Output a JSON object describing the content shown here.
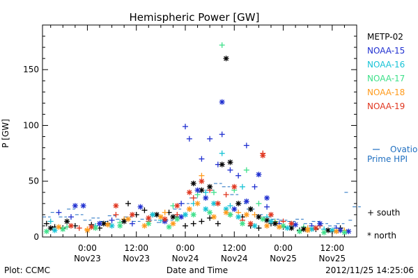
{
  "chart_data": {
    "type": "scatter",
    "title": "Hemispheric Power [GW]",
    "ylabel": "P [GW]",
    "xlabel": "Date and Time",
    "ylim": [
      0,
      190
    ],
    "xlim_hours": [
      -11,
      66
    ],
    "y_ticks": [
      0,
      50,
      100,
      150
    ],
    "x_ticks": [
      {
        "hour": 0,
        "time": "0:00",
        "date": "Nov23"
      },
      {
        "hour": 12,
        "time": "12:00",
        "date": "Nov23"
      },
      {
        "hour": 24,
        "time": "0:00",
        "date": "Nov24"
      },
      {
        "hour": 36,
        "time": "12:00",
        "date": "Nov24"
      },
      {
        "hour": 48,
        "time": "0:00",
        "date": "Nov25"
      },
      {
        "hour": 60,
        "time": "12:00",
        "date": "Nov25"
      }
    ],
    "series": [
      {
        "name": "METP-02",
        "color": "#000000"
      },
      {
        "name": "NOAA-15",
        "color": "#1f2fd0"
      },
      {
        "name": "NOAA-16",
        "color": "#17c3d6"
      },
      {
        "name": "NOAA-17",
        "color": "#3ee08a"
      },
      {
        "name": "NOAA-18",
        "color": "#ff9a1a"
      },
      {
        "name": "NOAA-19",
        "color": "#e0351e"
      }
    ],
    "model_line": {
      "label_line1": "Ovation",
      "label_line2": "Prime HPI",
      "color": "#1f6fc0",
      "points": [
        [
          -11,
          18
        ],
        [
          -9,
          22
        ],
        [
          -7,
          18
        ],
        [
          -5,
          25
        ],
        [
          -3,
          20
        ],
        [
          -1,
          15
        ],
        [
          1,
          17
        ],
        [
          3,
          14
        ],
        [
          5,
          19
        ],
        [
          7,
          16
        ],
        [
          9,
          18
        ],
        [
          11,
          14
        ],
        [
          13,
          16
        ],
        [
          15,
          15
        ],
        [
          17,
          13
        ],
        [
          19,
          15
        ],
        [
          21,
          25
        ],
        [
          23,
          30
        ],
        [
          25,
          35
        ],
        [
          27,
          40
        ],
        [
          29,
          42
        ],
        [
          31,
          48
        ],
        [
          33,
          45
        ],
        [
          35,
          38
        ],
        [
          37,
          30
        ],
        [
          39,
          25
        ],
        [
          41,
          20
        ],
        [
          43,
          18
        ],
        [
          45,
          16
        ],
        [
          47,
          15
        ],
        [
          49,
          14
        ],
        [
          51,
          16
        ],
        [
          53,
          12
        ],
        [
          55,
          14
        ],
        [
          57,
          12
        ],
        [
          59,
          10
        ],
        [
          61,
          12
        ],
        [
          63,
          40
        ],
        [
          64,
          15
        ],
        [
          65,
          27
        ]
      ]
    },
    "south_points": {
      "marker_label": "+ south",
      "points": [
        [
          -10,
          12,
          0
        ],
        [
          -8,
          9,
          0
        ],
        [
          -6,
          8,
          0
        ],
        [
          -3,
          10,
          0
        ],
        [
          1,
          11,
          0
        ],
        [
          3,
          8,
          0
        ],
        [
          5,
          12,
          0
        ],
        [
          10,
          30,
          0
        ],
        [
          12,
          20,
          0
        ],
        [
          14,
          24,
          0
        ],
        [
          16,
          20,
          0
        ],
        [
          20,
          22,
          0
        ],
        [
          22,
          18,
          0
        ],
        [
          24,
          10,
          0
        ],
        [
          26,
          12,
          0
        ],
        [
          28,
          14,
          0
        ],
        [
          30,
          17,
          0
        ],
        [
          32,
          12,
          0
        ],
        [
          35,
          20,
          0
        ],
        [
          38,
          18,
          0
        ],
        [
          40,
          10,
          0
        ],
        [
          42,
          8,
          0
        ],
        [
          45,
          12,
          0
        ],
        [
          48,
          9,
          0
        ],
        [
          52,
          6,
          0
        ],
        [
          56,
          7,
          0
        ],
        [
          60,
          5,
          0
        ],
        [
          62,
          8,
          0
        ],
        [
          -7,
          22,
          1
        ],
        [
          -4,
          18,
          1
        ],
        [
          6,
          15,
          1
        ],
        [
          11,
          12,
          1
        ],
        [
          23,
          30,
          1
        ],
        [
          24,
          99,
          1
        ],
        [
          25,
          88,
          1
        ],
        [
          28,
          70,
          1
        ],
        [
          30,
          88,
          1
        ],
        [
          32,
          65,
          1
        ],
        [
          33,
          92,
          1
        ],
        [
          35,
          60,
          1
        ],
        [
          37,
          55,
          1
        ],
        [
          39,
          82,
          1
        ],
        [
          41,
          45,
          1
        ],
        [
          44,
          27,
          1
        ],
        [
          47,
          12,
          1
        ],
        [
          55,
          10,
          1
        ],
        [
          61,
          8,
          1
        ],
        [
          -9,
          14,
          2
        ],
        [
          2,
          10,
          2
        ],
        [
          18,
          15,
          2
        ],
        [
          26,
          30,
          2
        ],
        [
          29,
          40,
          2
        ],
        [
          33,
          75,
          2
        ],
        [
          35,
          28,
          2
        ],
        [
          38,
          45,
          2
        ],
        [
          40,
          25,
          2
        ],
        [
          44,
          18,
          2
        ],
        [
          50,
          10,
          2
        ],
        [
          58,
          7,
          2
        ],
        [
          -5,
          9,
          3
        ],
        [
          8,
          13,
          3
        ],
        [
          21,
          28,
          3
        ],
        [
          27,
          38,
          3
        ],
        [
          31,
          40,
          3
        ],
        [
          33,
          172,
          3
        ],
        [
          36,
          42,
          3
        ],
        [
          39,
          60,
          3
        ],
        [
          42,
          30,
          3
        ],
        [
          46,
          14,
          3
        ],
        [
          53,
          9,
          3
        ],
        [
          0,
          7,
          4
        ],
        [
          9,
          16,
          4
        ],
        [
          19,
          22,
          4
        ],
        [
          25,
          25,
          4
        ],
        [
          28,
          55,
          4
        ],
        [
          32,
          30,
          4
        ],
        [
          37,
          22,
          4
        ],
        [
          41,
          20,
          4
        ],
        [
          46,
          13,
          4
        ],
        [
          54,
          8,
          4
        ],
        [
          63,
          6,
          4
        ],
        [
          -2,
          8,
          5
        ],
        [
          7,
          20,
          5
        ],
        [
          15,
          14,
          5
        ],
        [
          22,
          20,
          5
        ],
        [
          26,
          35,
          5
        ],
        [
          30,
          42,
          5
        ],
        [
          34,
          38,
          5
        ],
        [
          38,
          15,
          5
        ],
        [
          43,
          75,
          5
        ],
        [
          48,
          14,
          5
        ],
        [
          57,
          10,
          5
        ]
      ]
    },
    "north_points": {
      "marker_label": "* north",
      "points": [
        [
          -9,
          8,
          0
        ],
        [
          -5,
          14,
          0
        ],
        [
          4,
          12,
          0
        ],
        [
          9,
          14,
          0
        ],
        [
          17,
          20,
          0
        ],
        [
          21,
          18,
          0
        ],
        [
          26,
          48,
          0
        ],
        [
          28,
          42,
          0
        ],
        [
          30,
          45,
          0
        ],
        [
          33,
          65,
          0
        ],
        [
          34,
          160,
          0
        ],
        [
          35,
          67,
          0
        ],
        [
          37,
          30,
          0
        ],
        [
          40,
          25,
          0
        ],
        [
          42,
          18,
          0
        ],
        [
          44,
          15,
          0
        ],
        [
          46,
          12,
          0
        ],
        [
          50,
          8,
          0
        ],
        [
          53,
          7,
          0
        ],
        [
          59,
          6,
          0
        ],
        [
          -3,
          28,
          1
        ],
        [
          -1,
          28,
          1
        ],
        [
          3,
          12,
          1
        ],
        [
          13,
          27,
          1
        ],
        [
          19,
          14,
          1
        ],
        [
          23,
          18,
          1
        ],
        [
          27,
          42,
          1
        ],
        [
          29,
          35,
          1
        ],
        [
          33,
          121,
          1
        ],
        [
          36,
          25,
          1
        ],
        [
          39,
          32,
          1
        ],
        [
          42,
          56,
          1
        ],
        [
          44,
          35,
          1
        ],
        [
          51,
          11,
          1
        ],
        [
          57,
          12,
          1
        ],
        [
          62,
          6,
          1
        ],
        [
          64,
          5,
          1
        ],
        [
          -8,
          6,
          2
        ],
        [
          6,
          10,
          2
        ],
        [
          16,
          20,
          2
        ],
        [
          24,
          20,
          2
        ],
        [
          29,
          25,
          2
        ],
        [
          31,
          30,
          2
        ],
        [
          34,
          25,
          2
        ],
        [
          37,
          18,
          2
        ],
        [
          41,
          10,
          2
        ],
        [
          45,
          14,
          2
        ],
        [
          49,
          8,
          2
        ],
        [
          55,
          7,
          2
        ],
        [
          60,
          6,
          2
        ],
        [
          -10,
          5,
          3
        ],
        [
          -6,
          7,
          3
        ],
        [
          2,
          8,
          3
        ],
        [
          8,
          10,
          3
        ],
        [
          15,
          12,
          3
        ],
        [
          20,
          9,
          3
        ],
        [
          22,
          16,
          3
        ],
        [
          26,
          20,
          3
        ],
        [
          30,
          22,
          3
        ],
        [
          35,
          20,
          3
        ],
        [
          38,
          12,
          3
        ],
        [
          43,
          16,
          3
        ],
        [
          48,
          10,
          3
        ],
        [
          52,
          5,
          3
        ],
        [
          58,
          4,
          3
        ],
        [
          63,
          4,
          3
        ],
        [
          -7,
          9,
          4
        ],
        [
          0,
          6,
          4
        ],
        [
          5,
          11,
          4
        ],
        [
          10,
          16,
          4
        ],
        [
          14,
          10,
          4
        ],
        [
          18,
          18,
          4
        ],
        [
          21,
          12,
          4
        ],
        [
          25,
          25,
          4
        ],
        [
          27,
          30,
          4
        ],
        [
          31,
          18,
          4
        ],
        [
          34,
          22,
          4
        ],
        [
          39,
          20,
          4
        ],
        [
          44,
          10,
          4
        ],
        [
          47,
          9,
          4
        ],
        [
          54,
          6,
          4
        ],
        [
          61,
          5,
          4
        ],
        [
          -4,
          10,
          5
        ],
        [
          1,
          9,
          5
        ],
        [
          7,
          28,
          5
        ],
        [
          11,
          20,
          5
        ],
        [
          15,
          17,
          5
        ],
        [
          19,
          16,
          5
        ],
        [
          22,
          28,
          5
        ],
        [
          25,
          40,
          5
        ],
        [
          28,
          50,
          5
        ],
        [
          32,
          30,
          5
        ],
        [
          36,
          45,
          5
        ],
        [
          40,
          12,
          5
        ],
        [
          43,
          73,
          5
        ],
        [
          45,
          20,
          5
        ],
        [
          50,
          12,
          5
        ],
        [
          56,
          8,
          5
        ]
      ]
    }
  },
  "footer": {
    "plot_credit": "Plot: CCMC",
    "timestamp": "2012/11/25 14:25:06"
  }
}
